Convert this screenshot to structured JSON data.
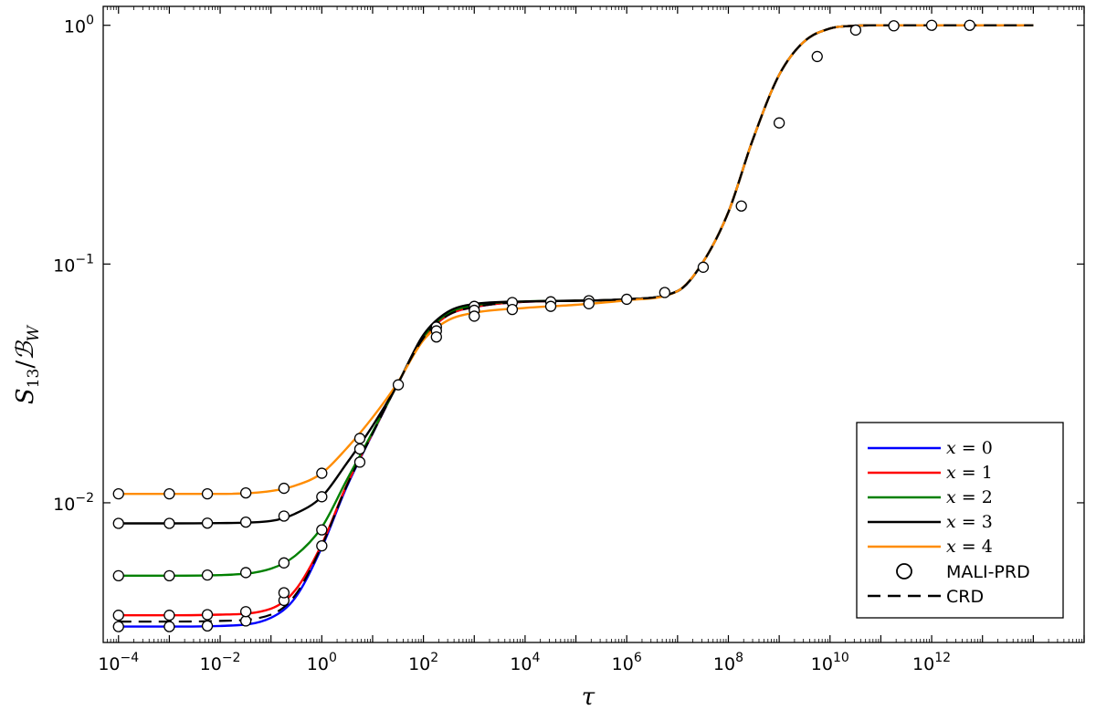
{
  "chart_data": {
    "type": "line",
    "title": "",
    "xlabel": "τ",
    "ylabel_main": "S",
    "ylabel_sub": "13",
    "ylabel_den": "ℬ",
    "ylabel_den_sub": "W",
    "x_scale": "log",
    "y_scale": "log",
    "xlim": [
      5e-05,
      1000000000000000
    ],
    "ylim": [
      0.0026,
      1.2
    ],
    "grid": false,
    "legend_position": "lower-right",
    "x_tick_labels": [
      {
        "base": "10",
        "exp": "−4",
        "value": 0.0001
      },
      {
        "base": "10",
        "exp": "−2",
        "value": 0.01
      },
      {
        "base": "10",
        "exp": "0",
        "value": 1
      },
      {
        "base": "10",
        "exp": "2",
        "value": 100
      },
      {
        "base": "10",
        "exp": "4",
        "value": 10000
      },
      {
        "base": "10",
        "exp": "6",
        "value": 1000000
      },
      {
        "base": "10",
        "exp": "8",
        "value": 100000000
      },
      {
        "base": "10",
        "exp": "10",
        "value": 10000000000
      },
      {
        "base": "10",
        "exp": "12",
        "value": 1000000000000
      }
    ],
    "y_tick_labels": [
      {
        "base": "10",
        "exp": "−2",
        "value": 0.01
      },
      {
        "base": "10",
        "exp": "−1",
        "value": 0.1
      },
      {
        "base": "10",
        "exp": "0",
        "value": 1
      }
    ],
    "series": [
      {
        "name": "x = 0",
        "color": "#0000ff",
        "style": "solid",
        "x": [
          0.0001,
          0.001,
          0.01,
          0.1,
          0.3,
          1,
          3,
          10,
          30,
          100,
          300,
          1000,
          10000,
          100000,
          1000000,
          10000000,
          30000000,
          100000000,
          300000000,
          1000000000,
          3000000000,
          10000000000,
          30000000000,
          100000000000,
          10000000000000,
          100000000000000
        ],
        "y": [
          0.00303,
          0.00303,
          0.00305,
          0.0033,
          0.004,
          0.0065,
          0.0115,
          0.0195,
          0.031,
          0.049,
          0.061,
          0.066,
          0.0695,
          0.0702,
          0.0712,
          0.077,
          0.1,
          0.165,
          0.33,
          0.62,
          0.85,
          0.97,
          0.995,
          1.0,
          1.0,
          1.0
        ]
      },
      {
        "name": "x = 1",
        "color": "#ff0000",
        "style": "solid",
        "x": [
          0.0001,
          0.001,
          0.01,
          0.1,
          0.3,
          1,
          3,
          10,
          30,
          100,
          300,
          1000,
          10000,
          100000,
          1000000,
          10000000,
          30000000,
          100000000,
          300000000,
          1000000000,
          3000000000,
          10000000000,
          30000000000,
          100000000000,
          10000000000000,
          100000000000000
        ],
        "y": [
          0.00338,
          0.00338,
          0.0034,
          0.0036,
          0.0043,
          0.0067,
          0.0117,
          0.0196,
          0.031,
          0.049,
          0.061,
          0.066,
          0.0695,
          0.0702,
          0.0712,
          0.077,
          0.1,
          0.165,
          0.33,
          0.62,
          0.85,
          0.97,
          0.995,
          1.0,
          1.0,
          1.0
        ]
      },
      {
        "name": "x = 2",
        "color": "#008000",
        "style": "solid",
        "x": [
          0.0001,
          0.001,
          0.01,
          0.1,
          0.3,
          1,
          3,
          10,
          30,
          100,
          300,
          1000,
          10000,
          100000,
          1000000,
          10000000,
          30000000,
          100000000,
          300000000,
          1000000000,
          3000000000,
          10000000000,
          30000000000,
          100000000000,
          10000000000000,
          100000000000000
        ],
        "y": [
          0.00495,
          0.00495,
          0.00498,
          0.0053,
          0.006,
          0.0079,
          0.0123,
          0.0198,
          0.031,
          0.0495,
          0.062,
          0.067,
          0.0697,
          0.0702,
          0.0712,
          0.077,
          0.1,
          0.165,
          0.33,
          0.62,
          0.85,
          0.97,
          0.995,
          1.0,
          1.0,
          1.0
        ]
      },
      {
        "name": "x = 3",
        "color": "#000000",
        "style": "solid",
        "x": [
          0.0001,
          0.001,
          0.01,
          0.1,
          0.3,
          1,
          3,
          10,
          30,
          100,
          300,
          1000,
          10000,
          100000,
          1000000,
          10000000,
          30000000,
          100000000,
          300000000,
          1000000000,
          3000000000,
          10000000000,
          30000000000,
          100000000000,
          10000000000000,
          100000000000000
        ],
        "y": [
          0.0082,
          0.0082,
          0.00822,
          0.0084,
          0.009,
          0.0106,
          0.0145,
          0.021,
          0.031,
          0.0505,
          0.063,
          0.068,
          0.0697,
          0.0702,
          0.0712,
          0.077,
          0.1,
          0.165,
          0.33,
          0.62,
          0.85,
          0.97,
          0.995,
          1.0,
          1.0,
          1.0
        ]
      },
      {
        "name": "x = 4",
        "color": "#ff8c00",
        "style": "solid",
        "x": [
          0.0001,
          0.001,
          0.01,
          0.1,
          0.3,
          1,
          3,
          10,
          30,
          100,
          300,
          1000,
          10000,
          100000,
          1000000,
          10000000,
          30000000,
          100000000,
          300000000,
          1000000000,
          3000000000,
          10000000000,
          30000000000,
          100000000000,
          10000000000000,
          100000000000000
        ],
        "y": [
          0.0109,
          0.0109,
          0.0109,
          0.0112,
          0.0118,
          0.0133,
          0.0168,
          0.0228,
          0.0315,
          0.048,
          0.058,
          0.0625,
          0.0655,
          0.0675,
          0.0705,
          0.077,
          0.1,
          0.165,
          0.33,
          0.62,
          0.85,
          0.97,
          0.995,
          1.0,
          1.0,
          1.0
        ]
      },
      {
        "name": "CRD",
        "color": "#000000",
        "style": "dashed",
        "x": [
          0.0001,
          0.001,
          0.01,
          0.1,
          0.3,
          1,
          3,
          10,
          30,
          100,
          300,
          1000,
          10000,
          100000,
          1000000,
          10000000,
          30000000,
          100000000,
          300000000,
          1000000000,
          3000000000,
          10000000000,
          30000000000,
          100000000000,
          10000000000000,
          100000000000000
        ],
        "y": [
          0.00318,
          0.00318,
          0.0032,
          0.0034,
          0.0041,
          0.0066,
          0.0116,
          0.0195,
          0.031,
          0.049,
          0.061,
          0.066,
          0.0695,
          0.0702,
          0.0712,
          0.077,
          0.1,
          0.165,
          0.33,
          0.62,
          0.85,
          0.97,
          0.995,
          1.0,
          1.0,
          1.0
        ]
      }
    ],
    "markers": {
      "name": "MALI-PRD",
      "points": [
        {
          "x": 0.0001,
          "y": 0.00303
        },
        {
          "x": 0.001,
          "y": 0.00303
        },
        {
          "x": 0.0056,
          "y": 0.00305
        },
        {
          "x": 0.032,
          "y": 0.0032
        },
        {
          "x": 0.18,
          "y": 0.0039
        },
        {
          "x": 1,
          "y": 0.0066
        },
        {
          "x": 0.0001,
          "y": 0.00338
        },
        {
          "x": 0.001,
          "y": 0.00338
        },
        {
          "x": 0.0056,
          "y": 0.0034
        },
        {
          "x": 0.032,
          "y": 0.0035
        },
        {
          "x": 0.18,
          "y": 0.0042
        },
        {
          "x": 0.0001,
          "y": 0.00495
        },
        {
          "x": 0.001,
          "y": 0.00495
        },
        {
          "x": 0.0056,
          "y": 0.00498
        },
        {
          "x": 0.032,
          "y": 0.0051
        },
        {
          "x": 0.18,
          "y": 0.0056
        },
        {
          "x": 1,
          "y": 0.0077
        },
        {
          "x": 0.0001,
          "y": 0.0082
        },
        {
          "x": 0.001,
          "y": 0.0082
        },
        {
          "x": 0.0056,
          "y": 0.00822
        },
        {
          "x": 0.032,
          "y": 0.0083
        },
        {
          "x": 0.18,
          "y": 0.0088
        },
        {
          "x": 1,
          "y": 0.0106
        },
        {
          "x": 0.0001,
          "y": 0.0109
        },
        {
          "x": 0.001,
          "y": 0.0109
        },
        {
          "x": 0.0056,
          "y": 0.0109
        },
        {
          "x": 0.032,
          "y": 0.011
        },
        {
          "x": 0.18,
          "y": 0.0115
        },
        {
          "x": 1,
          "y": 0.0133
        },
        {
          "x": 5.6,
          "y": 0.0148
        },
        {
          "x": 5.6,
          "y": 0.0168
        },
        {
          "x": 5.6,
          "y": 0.0186
        },
        {
          "x": 32,
          "y": 0.0312
        },
        {
          "x": 180,
          "y": 0.0545
        },
        {
          "x": 180,
          "y": 0.0525
        },
        {
          "x": 180,
          "y": 0.0495
        },
        {
          "x": 1000,
          "y": 0.0665
        },
        {
          "x": 1000,
          "y": 0.064
        },
        {
          "x": 1000,
          "y": 0.0605
        },
        {
          "x": 5600,
          "y": 0.069
        },
        {
          "x": 5600,
          "y": 0.0645
        },
        {
          "x": 32000,
          "y": 0.0695
        },
        {
          "x": 32000,
          "y": 0.0665
        },
        {
          "x": 180000,
          "y": 0.0702
        },
        {
          "x": 180000,
          "y": 0.0682
        },
        {
          "x": 1000000,
          "y": 0.0712
        },
        {
          "x": 5600000,
          "y": 0.076
        },
        {
          "x": 32000000,
          "y": 0.097
        },
        {
          "x": 180000000,
          "y": 0.175
        },
        {
          "x": 1000000000,
          "y": 0.39
        },
        {
          "x": 5600000000,
          "y": 0.74
        },
        {
          "x": 32000000000,
          "y": 0.955
        },
        {
          "x": 180000000000,
          "y": 0.995
        },
        {
          "x": 1000000000000,
          "y": 1.0
        },
        {
          "x": 5600000000000,
          "y": 1.0
        }
      ]
    },
    "legend": [
      {
        "label_var": "x",
        "label_eq": " = 0",
        "kind": "line",
        "color": "#0000ff"
      },
      {
        "label_var": "x",
        "label_eq": " = 1",
        "kind": "line",
        "color": "#ff0000"
      },
      {
        "label_var": "x",
        "label_eq": " = 2",
        "kind": "line",
        "color": "#008000"
      },
      {
        "label_var": "x",
        "label_eq": " = 3",
        "kind": "line",
        "color": "#000000"
      },
      {
        "label_var": "x",
        "label_eq": " = 4",
        "kind": "line",
        "color": "#ff8c00"
      },
      {
        "label_text": "MALI-PRD",
        "kind": "marker",
        "color": "#000000"
      },
      {
        "label_text": "CRD",
        "kind": "dashed",
        "color": "#000000"
      }
    ]
  }
}
